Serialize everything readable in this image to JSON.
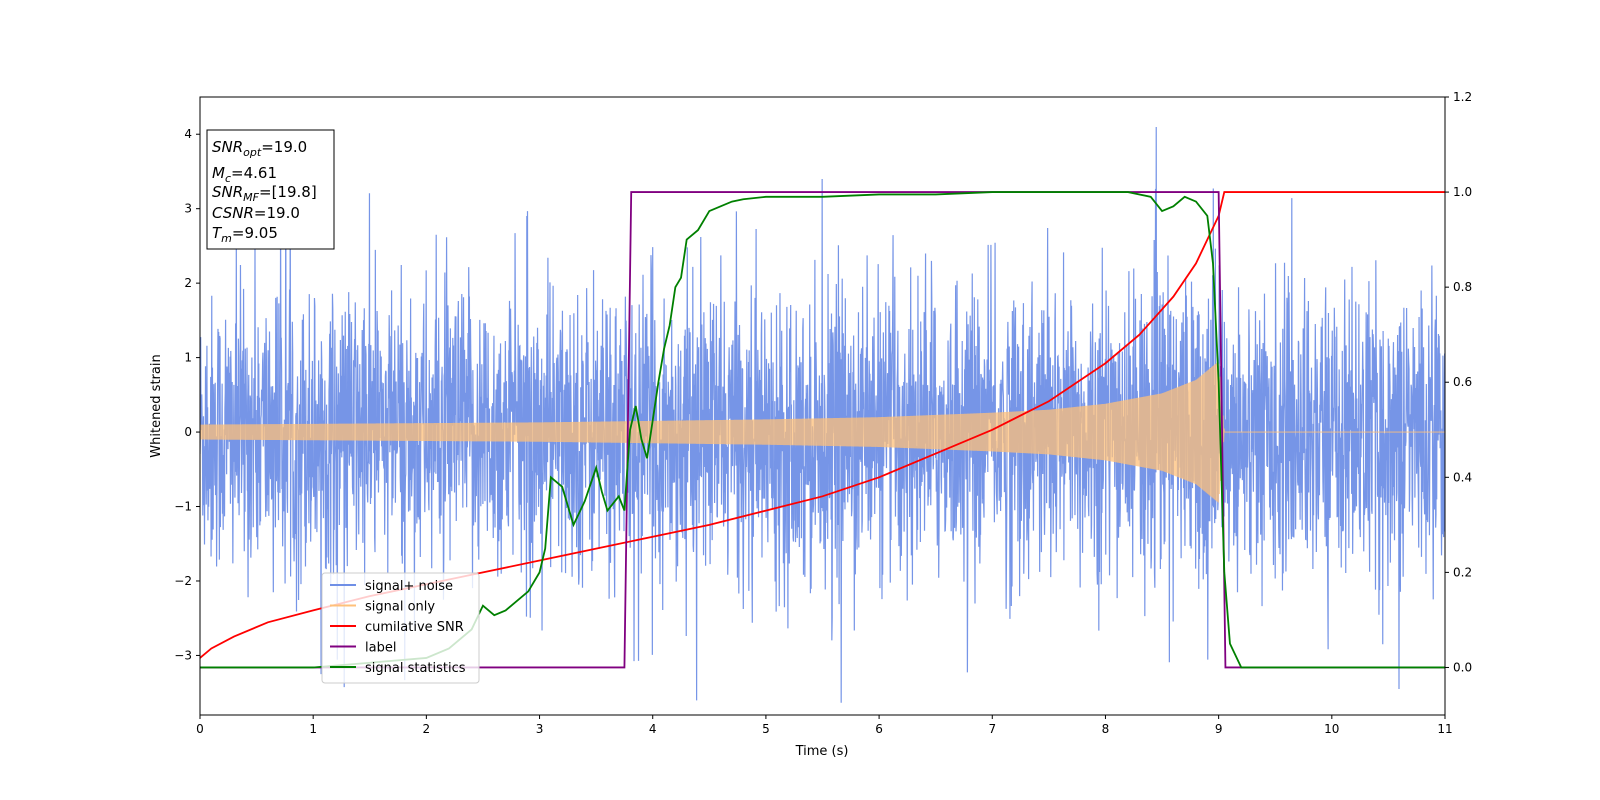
{
  "chart_data": {
    "type": "line",
    "title": "",
    "xlabel": "Time (s)",
    "ylabel": "Whitened strain",
    "xlim": [
      0,
      11
    ],
    "ylim": [
      -3.8,
      4.5
    ],
    "y2lim": [
      -0.1,
      1.2
    ],
    "xticks": [
      "0",
      "1",
      "2",
      "3",
      "4",
      "5",
      "6",
      "7",
      "8",
      "9",
      "10",
      "11"
    ],
    "yticks": [
      "−3",
      "−2",
      "−1",
      "0",
      "1",
      "2",
      "3",
      "4"
    ],
    "y2ticks": [
      "0.0",
      "0.2",
      "0.4",
      "0.6",
      "0.8",
      "1.0",
      "1.2"
    ],
    "grid": false,
    "legend_position": "lower-left",
    "series": [
      {
        "name": "signal+ noise",
        "axis": "left",
        "color": "#6f8fe6",
        "description_values": {
          "noise_std": 1.0,
          "peak_max": 4.15,
          "peak_min": -3.45
        }
      },
      {
        "name": "signal only",
        "axis": "left",
        "color": "#ffc07a",
        "envelope": {
          "x": [
            0,
            1,
            2,
            3,
            4,
            5,
            6,
            7,
            7.5,
            8,
            8.5,
            8.8,
            9.0,
            9.05,
            11
          ],
          "amplitude": [
            0.1,
            0.11,
            0.12,
            0.13,
            0.15,
            0.17,
            0.2,
            0.26,
            0.3,
            0.38,
            0.52,
            0.7,
            0.95,
            0.0,
            0.0
          ]
        }
      },
      {
        "name": "cumilative SNR",
        "axis": "right",
        "color": "#ff0000",
        "x": [
          0,
          0.1,
          0.3,
          0.6,
          1,
          1.5,
          2,
          2.5,
          3,
          3.5,
          4,
          4.5,
          5,
          5.5,
          6,
          6.5,
          7,
          7.5,
          8,
          8.3,
          8.6,
          8.8,
          8.9,
          9.0,
          9.05,
          11
        ],
        "values": [
          0.02,
          0.04,
          0.065,
          0.095,
          0.12,
          0.15,
          0.175,
          0.2,
          0.225,
          0.25,
          0.275,
          0.3,
          0.33,
          0.36,
          0.4,
          0.45,
          0.5,
          0.56,
          0.64,
          0.7,
          0.78,
          0.85,
          0.9,
          0.95,
          1.0,
          1.0
        ]
      },
      {
        "name": "label",
        "axis": "right",
        "color": "#800080",
        "x": [
          0,
          3.75,
          3.81,
          9.0,
          9.06,
          11
        ],
        "values": [
          0,
          0,
          1,
          1,
          0,
          0
        ]
      },
      {
        "name": "signal statistics",
        "axis": "right",
        "color": "#008000",
        "x": [
          0,
          1,
          1.5,
          2,
          2.2,
          2.4,
          2.5,
          2.6,
          2.7,
          2.8,
          2.9,
          3.0,
          3.05,
          3.1,
          3.2,
          3.3,
          3.4,
          3.5,
          3.55,
          3.6,
          3.7,
          3.75,
          3.8,
          3.85,
          3.9,
          3.95,
          4.0,
          4.05,
          4.1,
          4.15,
          4.2,
          4.25,
          4.3,
          4.4,
          4.5,
          4.6,
          4.7,
          4.8,
          5.0,
          5.5,
          6.0,
          6.5,
          7.0,
          7.5,
          8.0,
          8.2,
          8.4,
          8.5,
          8.6,
          8.7,
          8.8,
          8.9,
          8.95,
          9.0,
          9.05,
          9.1,
          9.2,
          11
        ],
        "values": [
          0.0,
          0.0,
          0.01,
          0.02,
          0.04,
          0.08,
          0.13,
          0.11,
          0.12,
          0.14,
          0.16,
          0.2,
          0.25,
          0.4,
          0.38,
          0.3,
          0.35,
          0.42,
          0.37,
          0.33,
          0.36,
          0.33,
          0.5,
          0.55,
          0.48,
          0.44,
          0.52,
          0.6,
          0.67,
          0.72,
          0.8,
          0.82,
          0.9,
          0.92,
          0.96,
          0.97,
          0.98,
          0.985,
          0.99,
          0.99,
          0.995,
          0.995,
          1.0,
          1.0,
          1.0,
          1.0,
          0.99,
          0.96,
          0.97,
          0.99,
          0.98,
          0.95,
          0.85,
          0.6,
          0.2,
          0.05,
          0.0,
          0.0
        ]
      }
    ],
    "annotation": {
      "lines": [
        {
          "sym": "SNR",
          "sub": "opt",
          "value": "=19.0"
        },
        {
          "sym": "M",
          "sub": "c",
          "value": "=4.61"
        },
        {
          "sym": "SNR",
          "sub": "MF",
          "value": "=[19.8]"
        },
        {
          "sym": "CSNR",
          "sub": "",
          "value": "=19.0"
        },
        {
          "sym": "T",
          "sub": "m",
          "value": "=9.05"
        }
      ]
    }
  }
}
